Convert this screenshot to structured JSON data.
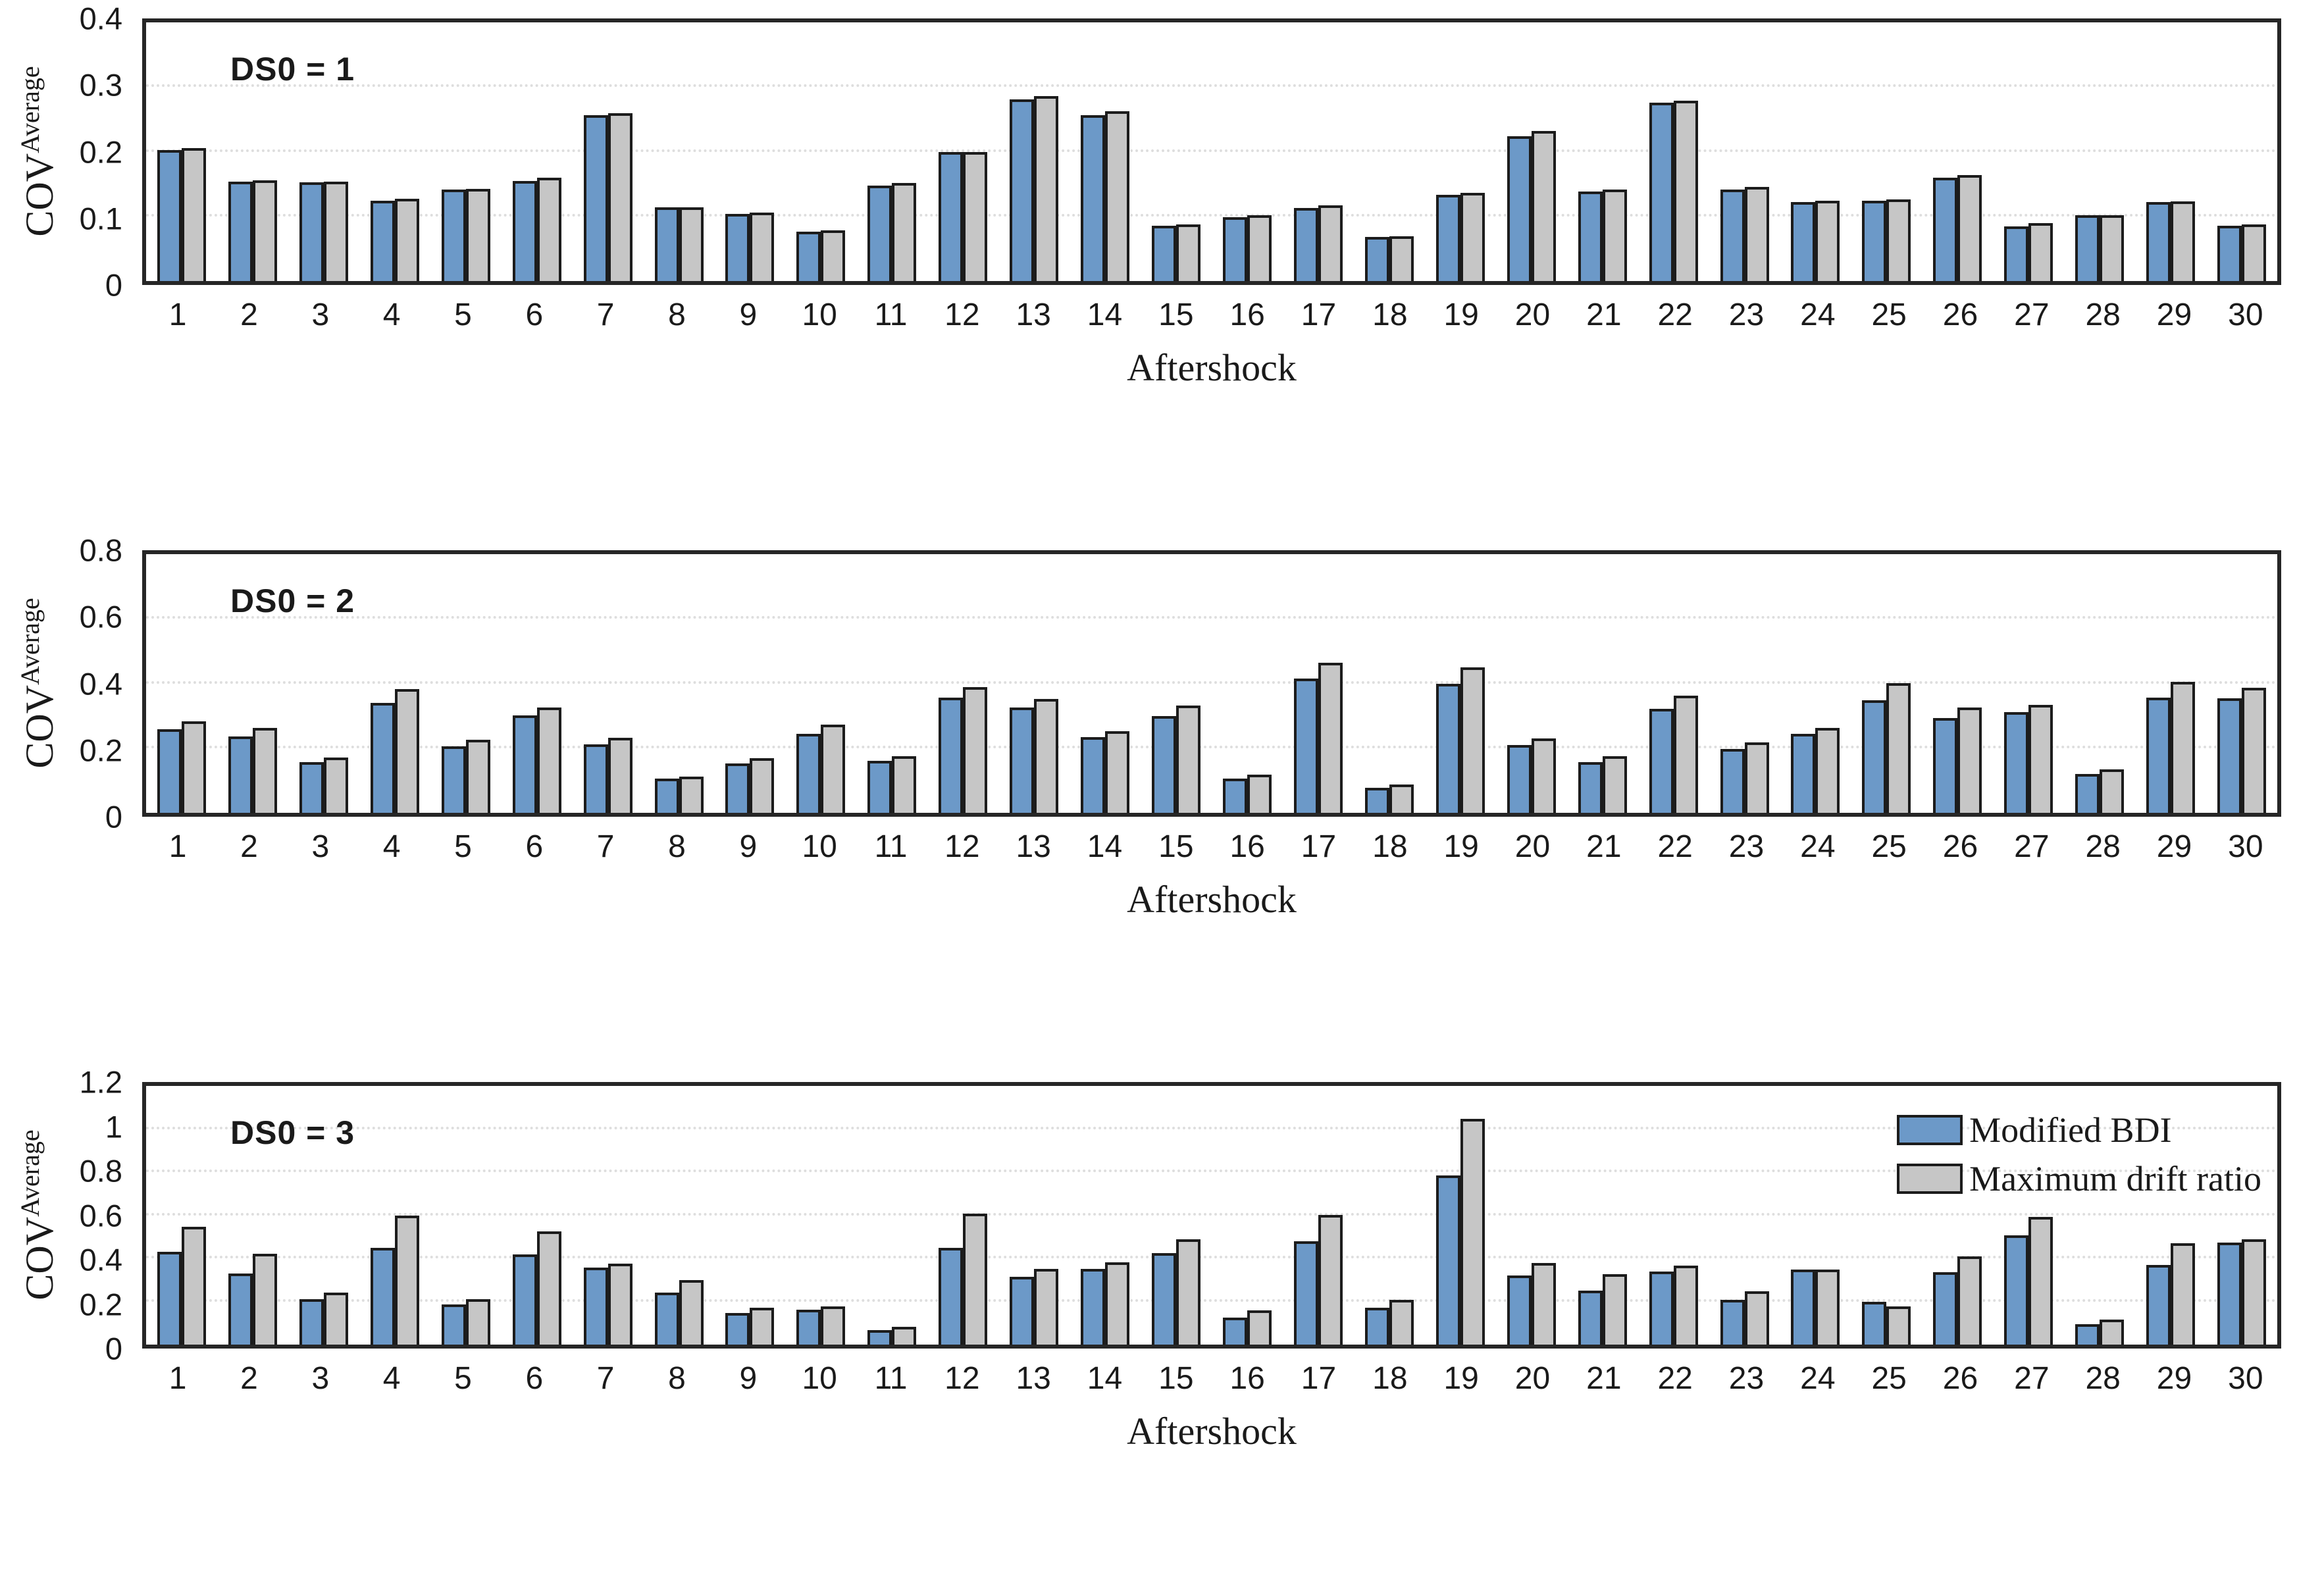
{
  "figure": {
    "background": "#ffffff",
    "frame_color": "#262626",
    "grid_color": "#dedede",
    "bar_edge_color": "#1c1c1c",
    "legend": {
      "location": "upper right of third panel",
      "items": [
        {
          "label": "Modified BDI",
          "color": "#6C99C8"
        },
        {
          "label": "Maximum drift ratio",
          "color": "#C6C6C6"
        }
      ]
    }
  },
  "chart_data": [
    {
      "type": "bar",
      "title": "DS0 = 1",
      "xlabel": "Aftershock",
      "ylabel": "COV",
      "ylabel_sup": "Average",
      "ylim": [
        0,
        0.4
      ],
      "yticks": [
        0,
        0.1,
        0.2,
        0.3,
        0.4
      ],
      "ytick_labels": [
        "0",
        "0.1",
        "0.2",
        "0.3",
        "0.4"
      ],
      "grid": "dotted-horizontal",
      "legend_position": "none",
      "categories": [
        1,
        2,
        3,
        4,
        5,
        6,
        7,
        8,
        9,
        10,
        11,
        12,
        13,
        14,
        15,
        16,
        17,
        18,
        19,
        20,
        21,
        22,
        23,
        24,
        25,
        26,
        27,
        28,
        29,
        30
      ],
      "series": [
        {
          "name": "Modified BDI",
          "color": "#6C99C8",
          "values": [
            0.203,
            0.154,
            0.153,
            0.124,
            0.141,
            0.155,
            0.257,
            0.114,
            0.104,
            0.076,
            0.148,
            0.2,
            0.281,
            0.257,
            0.086,
            0.099,
            0.113,
            0.068,
            0.133,
            0.224,
            0.138,
            0.276,
            0.141,
            0.122,
            0.124,
            0.16,
            0.085,
            0.102,
            0.122,
            0.086
          ]
        },
        {
          "name": "Maximum drift ratio",
          "color": "#C6C6C6",
          "values": [
            0.206,
            0.156,
            0.154,
            0.127,
            0.143,
            0.16,
            0.26,
            0.114,
            0.106,
            0.078,
            0.152,
            0.2,
            0.286,
            0.263,
            0.088,
            0.102,
            0.117,
            0.069,
            0.136,
            0.232,
            0.142,
            0.279,
            0.146,
            0.124,
            0.126,
            0.164,
            0.09,
            0.102,
            0.123,
            0.088
          ]
        }
      ]
    },
    {
      "type": "bar",
      "title": "DS0 = 2",
      "xlabel": "Aftershock",
      "ylabel": "COV",
      "ylabel_sup": "Average",
      "ylim": [
        0,
        0.8
      ],
      "yticks": [
        0,
        0.2,
        0.4,
        0.6,
        0.8
      ],
      "ytick_labels": [
        "0",
        "0.2",
        "0.4",
        "0.6",
        "0.8"
      ],
      "grid": "dotted-horizontal",
      "legend_position": "none",
      "categories": [
        1,
        2,
        3,
        4,
        5,
        6,
        7,
        8,
        9,
        10,
        11,
        12,
        13,
        14,
        15,
        16,
        17,
        18,
        19,
        20,
        21,
        22,
        23,
        24,
        25,
        26,
        27,
        28,
        29,
        30
      ],
      "series": [
        {
          "name": "Modified BDI",
          "color": "#6C99C8",
          "values": [
            0.258,
            0.237,
            0.157,
            0.34,
            0.205,
            0.302,
            0.212,
            0.105,
            0.152,
            0.244,
            0.161,
            0.357,
            0.325,
            0.235,
            0.3,
            0.105,
            0.415,
            0.077,
            0.398,
            0.21,
            0.157,
            0.322,
            0.197,
            0.245,
            0.348,
            0.293,
            0.312,
            0.12,
            0.356,
            0.354
          ]
        },
        {
          "name": "Maximum drift ratio",
          "color": "#C6C6C6",
          "values": [
            0.284,
            0.263,
            0.172,
            0.382,
            0.227,
            0.325,
            0.232,
            0.113,
            0.169,
            0.272,
            0.175,
            0.389,
            0.352,
            0.252,
            0.332,
            0.118,
            0.465,
            0.088,
            0.45,
            0.23,
            0.175,
            0.362,
            0.218,
            0.262,
            0.402,
            0.326,
            0.334,
            0.134,
            0.405,
            0.386
          ]
        }
      ]
    },
    {
      "type": "bar",
      "title": "DS0 = 3",
      "xlabel": "Aftershock",
      "ylabel": "COV",
      "ylabel_sup": "Average",
      "ylim": [
        0,
        1.2
      ],
      "yticks": [
        0,
        0.2,
        0.4,
        0.6,
        0.8,
        1,
        1.2
      ],
      "ytick_labels": [
        "0",
        "0.2",
        "0.4",
        "0.6",
        "0.8",
        "1",
        "1.2"
      ],
      "grid": "dotted-horizontal",
      "legend_position": "upper-right",
      "categories": [
        1,
        2,
        3,
        4,
        5,
        6,
        7,
        8,
        9,
        10,
        11,
        12,
        13,
        14,
        15,
        16,
        17,
        18,
        19,
        20,
        21,
        22,
        23,
        24,
        25,
        26,
        27,
        28,
        29,
        30
      ],
      "series": [
        {
          "name": "Modified BDI",
          "color": "#6C99C8",
          "values": [
            0.43,
            0.33,
            0.212,
            0.45,
            0.186,
            0.418,
            0.358,
            0.24,
            0.148,
            0.163,
            0.068,
            0.448,
            0.315,
            0.35,
            0.425,
            0.125,
            0.478,
            0.172,
            0.785,
            0.322,
            0.25,
            0.338,
            0.208,
            0.348,
            0.197,
            0.335,
            0.507,
            0.096,
            0.368,
            0.472
          ]
        },
        {
          "name": "Maximum drift ratio",
          "color": "#C6C6C6",
          "values": [
            0.548,
            0.42,
            0.24,
            0.598,
            0.21,
            0.525,
            0.376,
            0.298,
            0.172,
            0.177,
            0.084,
            0.608,
            0.352,
            0.382,
            0.49,
            0.158,
            0.602,
            0.207,
            1.048,
            0.38,
            0.326,
            0.366,
            0.247,
            0.348,
            0.178,
            0.408,
            0.593,
            0.115,
            0.47,
            0.488
          ]
        }
      ]
    }
  ]
}
